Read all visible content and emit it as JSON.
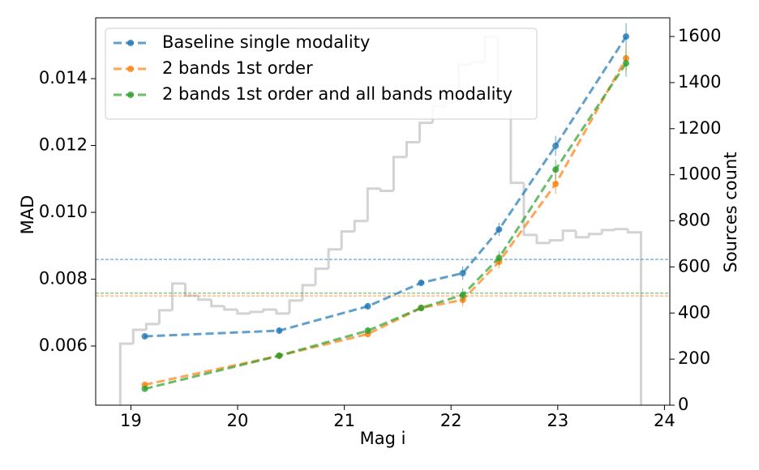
{
  "chart_data": {
    "type": "line",
    "xlabel": "Mag i",
    "ylabel": "MAD",
    "y2label": "Sources count",
    "xlim": [
      18.67,
      24.05
    ],
    "xticks": [
      19,
      20,
      21,
      22,
      23,
      24
    ],
    "ylim": [
      0.00423,
      0.01582
    ],
    "yticks": [
      0.006,
      0.008,
      {
        "value": 0.01,
        "label": "0.010"
      },
      0.012,
      0.014
    ],
    "y2lim": [
      0,
      1681
    ],
    "y2ticks": [
      0,
      200,
      400,
      600,
      800,
      1000,
      1200,
      1400,
      1600
    ],
    "legend": "upper left",
    "x": [
      19.13,
      20.39,
      21.22,
      21.72,
      22.11,
      22.45,
      22.98,
      23.64
    ],
    "series": [
      {
        "name": "Baseline single modality",
        "color": "#1f77b4",
        "hline": 0.00859,
        "values": [
          0.00629,
          0.00646,
          0.00719,
          0.00789,
          0.00818,
          0.00949,
          0.01199,
          0.01526
        ],
        "errors": [
          5e-05,
          0.0001,
          0.0001,
          0.0001,
          0.0002,
          0.0002,
          0.0003,
          0.0004
        ]
      },
      {
        "name": "2 bands 1st order",
        "color": "#ff7f0e",
        "hline": 0.0075,
        "values": [
          0.00484,
          0.00571,
          0.00636,
          0.00714,
          0.00738,
          0.00852,
          0.01085,
          0.01461
        ],
        "errors": [
          5e-05,
          0.0001,
          0.0001,
          0.0001,
          0.0002,
          0.0002,
          0.0003,
          0.0004
        ]
      },
      {
        "name": "2 bands 1st order and all bands modality",
        "color": "#2ca02c",
        "hline": 0.00758,
        "values": [
          0.00472,
          0.00571,
          0.00646,
          0.00714,
          0.00753,
          0.00864,
          0.01128,
          0.01446
        ],
        "errors": [
          5e-05,
          0.0001,
          0.0001,
          0.0001,
          0.0002,
          0.0002,
          0.0003,
          0.0004
        ]
      }
    ],
    "histogram": {
      "axis": "y2",
      "color": "#d3d3d3",
      "bins": [
        18.9,
        19.022,
        19.144,
        19.266,
        19.388,
        19.51,
        19.632,
        19.754,
        19.876,
        19.998,
        20.12,
        20.242,
        20.364,
        20.486,
        20.608,
        20.73,
        20.852,
        20.974,
        21.096,
        21.218,
        21.34,
        21.462,
        21.584,
        21.706,
        21.828,
        21.95,
        22.072,
        22.194,
        22.316,
        22.438,
        22.56,
        22.682,
        22.804,
        22.926,
        23.048,
        23.17,
        23.292,
        23.414,
        23.536,
        23.658,
        23.78
      ],
      "counts": [
        267,
        327,
        352,
        412,
        528,
        475,
        458,
        430,
        415,
        398,
        405,
        415,
        398,
        454,
        521,
        592,
        676,
        754,
        799,
        940,
        930,
        1077,
        1141,
        1225,
        1299,
        1359,
        1479,
        1489,
        1599,
        1320,
        965,
        739,
        704,
        715,
        757,
        729,
        743,
        760,
        764,
        750
      ]
    }
  }
}
